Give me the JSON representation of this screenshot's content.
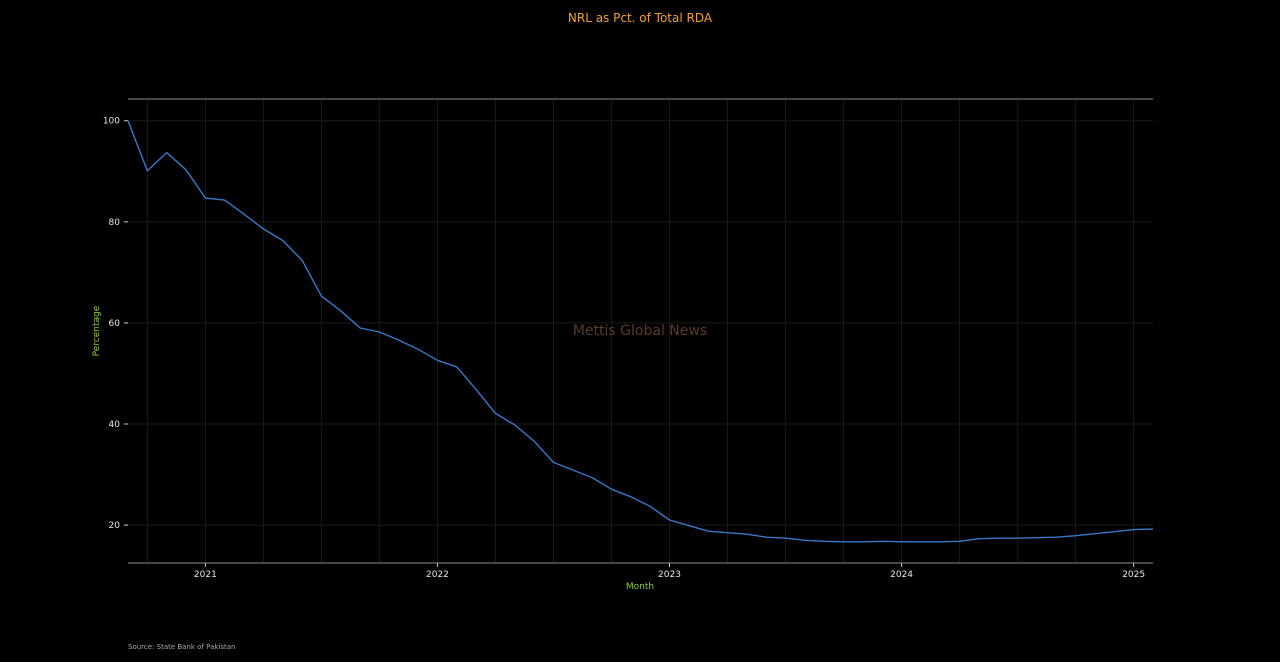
{
  "chart_data": {
    "type": "line",
    "title": "NRL as Pct. of Total RDA",
    "xlabel": "Month",
    "ylabel": "Percentage",
    "watermark": "Mettis Global News",
    "source": "Source: State Bank of Pakistan",
    "line_color": "#3a78c3",
    "title_color": "#f0a030",
    "axis_title_color": "#8fcf3c",
    "grid": true,
    "ylim": [
      12.5,
      104.3
    ],
    "xlim": [
      "2020-09",
      "2025-02"
    ],
    "x_ticks": [
      "2021",
      "2022",
      "2023",
      "2024",
      "2025"
    ],
    "y_ticks": [
      20,
      40,
      60,
      80,
      100
    ],
    "series": [
      {
        "x": [
          "2020-09",
          "2020-10",
          "2020-11",
          "2020-12",
          "2021-01",
          "2021-02",
          "2021-03",
          "2021-04",
          "2021-05",
          "2021-06",
          "2021-07",
          "2021-08",
          "2021-09",
          "2021-10",
          "2021-11",
          "2021-12",
          "2022-01",
          "2022-02",
          "2022-03",
          "2022-04",
          "2022-05",
          "2022-06",
          "2022-07",
          "2022-08",
          "2022-09",
          "2022-10",
          "2022-11",
          "2022-12",
          "2023-01",
          "2023-02",
          "2023-03",
          "2023-04",
          "2023-05",
          "2023-06",
          "2023-07",
          "2023-08",
          "2023-09",
          "2023-10",
          "2023-11",
          "2023-12",
          "2024-01",
          "2024-02",
          "2024-03",
          "2024-04",
          "2024-05",
          "2024-06",
          "2024-07",
          "2024-08",
          "2024-09",
          "2024-10",
          "2024-11",
          "2024-12",
          "2025-01",
          "2025-02"
        ],
        "values": [
          100.0,
          90.1,
          93.7,
          90.3,
          84.7,
          84.3,
          81.5,
          78.6,
          76.3,
          72.4,
          65.3,
          62.4,
          59.0,
          58.2,
          56.6,
          54.8,
          52.6,
          51.3,
          46.8,
          42.1,
          39.8,
          36.6,
          32.4,
          30.9,
          29.4,
          27.1,
          25.6,
          23.7,
          21.0,
          19.9,
          18.8,
          18.5,
          18.2,
          17.6,
          17.4,
          17.0,
          16.8,
          16.7,
          16.7,
          16.8,
          16.7,
          16.7,
          16.7,
          16.8,
          17.3,
          17.4,
          17.4,
          17.5,
          17.6,
          17.9,
          18.3,
          18.7,
          19.1,
          19.2
        ]
      }
    ]
  }
}
